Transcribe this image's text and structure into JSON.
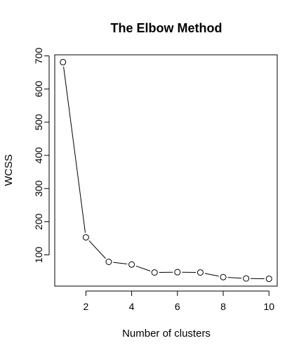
{
  "chart_data": {
    "type": "line",
    "title": "The Elbow Method",
    "xlabel": "Number of clusters",
    "ylabel": "WCSS",
    "x": [
      1,
      2,
      3,
      4,
      5,
      6,
      7,
      8,
      9,
      10
    ],
    "series": [
      {
        "values": [
          681,
          153,
          79,
          71,
          47,
          48,
          47,
          33,
          29,
          28
        ]
      }
    ],
    "xlim": [
      0.64,
      10.36
    ],
    "ylim": [
      5.9,
      703.1
    ],
    "xticks": [
      2,
      4,
      6,
      8,
      10
    ],
    "yticks": [
      100,
      200,
      300,
      400,
      500,
      600,
      700
    ],
    "xtick_labels": [
      "2",
      "4",
      "6",
      "8",
      "10"
    ],
    "ytick_labels": [
      "100",
      "200",
      "300",
      "400",
      "500",
      "600",
      "700"
    ],
    "grid": false,
    "legend": "none",
    "marker": "open-circle",
    "line_color": "#000000"
  }
}
